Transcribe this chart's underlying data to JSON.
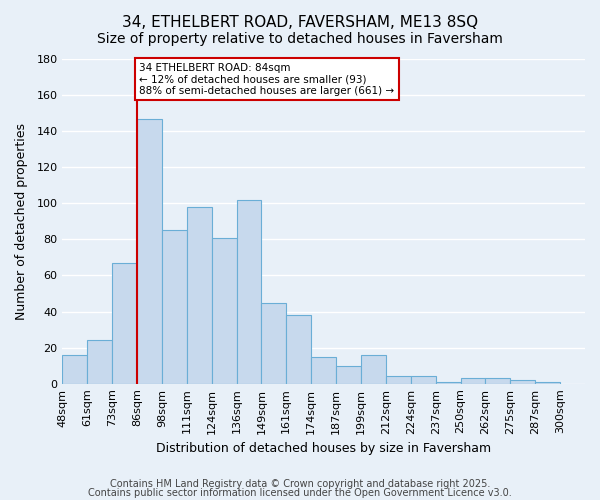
{
  "title": "34, ETHELBERT ROAD, FAVERSHAM, ME13 8SQ",
  "subtitle": "Size of property relative to detached houses in Faversham",
  "xlabel": "Distribution of detached houses by size in Faversham",
  "ylabel": "Number of detached properties",
  "bin_labels": [
    "48sqm",
    "61sqm",
    "73sqm",
    "86sqm",
    "98sqm",
    "111sqm",
    "124sqm",
    "136sqm",
    "149sqm",
    "161sqm",
    "174sqm",
    "187sqm",
    "199sqm",
    "212sqm",
    "224sqm",
    "237sqm",
    "250sqm",
    "262sqm",
    "275sqm",
    "287sqm",
    "300sqm"
  ],
  "bar_values": [
    16,
    24,
    67,
    147,
    85,
    98,
    81,
    102,
    45,
    38,
    15,
    10,
    16,
    4,
    4,
    1,
    3,
    3,
    2,
    1
  ],
  "bar_color": "#c7d9ed",
  "bar_edge_color": "#6aaed6",
  "background_color": "#e8f0f8",
  "grid_color": "#ffffff",
  "vline_bin_idx": 3,
  "annotation_text": "34 ETHELBERT ROAD: 84sqm\n← 12% of detached houses are smaller (93)\n88% of semi-detached houses are larger (661) →",
  "annotation_box_color": "#ffffff",
  "annotation_box_edge_color": "#cc0000",
  "annotation_text_color": "#000000",
  "vline_color": "#cc0000",
  "ylim": [
    0,
    180
  ],
  "yticks": [
    0,
    20,
    40,
    60,
    80,
    100,
    120,
    140,
    160,
    180
  ],
  "footer1": "Contains HM Land Registry data © Crown copyright and database right 2025.",
  "footer2": "Contains public sector information licensed under the Open Government Licence v3.0.",
  "title_fontsize": 11,
  "subtitle_fontsize": 10,
  "xlabel_fontsize": 9,
  "ylabel_fontsize": 9,
  "tick_fontsize": 8,
  "footer_fontsize": 7
}
